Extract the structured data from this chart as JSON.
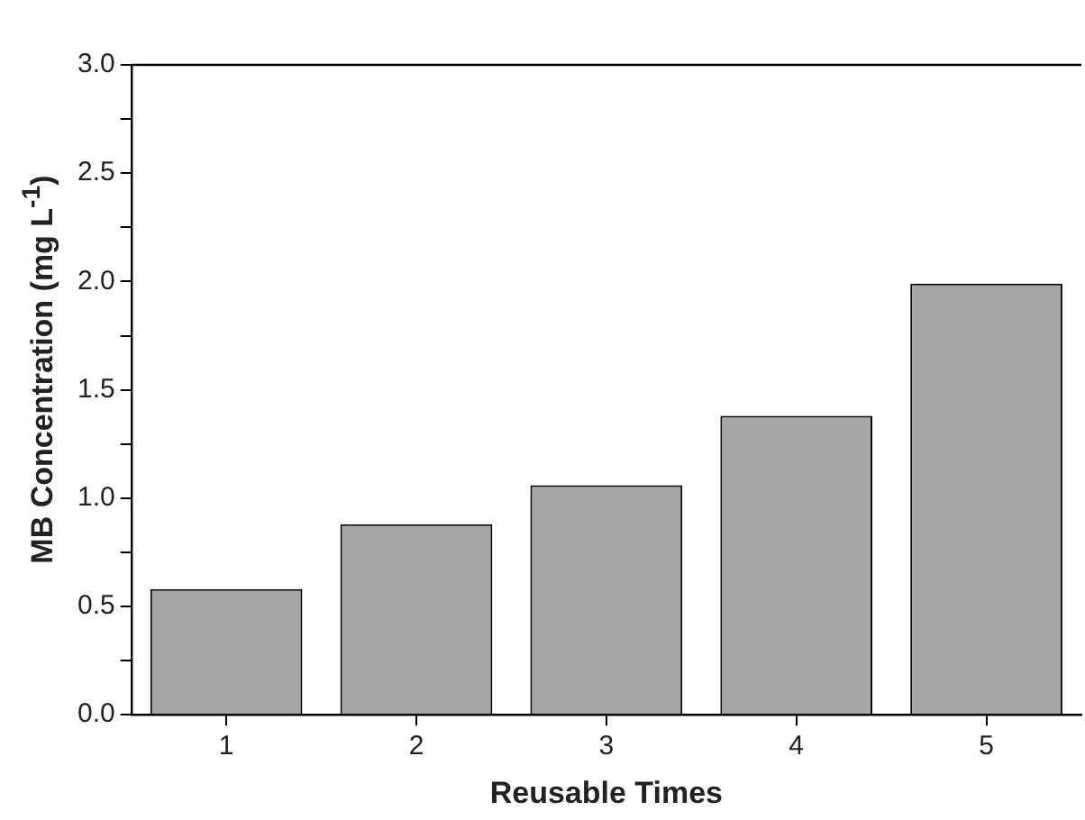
{
  "chart_data": {
    "type": "bar",
    "xlabel": "Reusable Times",
    "ylabel": "MB Concentration (mg L$^{-1}$)",
    "categories": [
      "1",
      "2",
      "3",
      "4",
      "5"
    ],
    "values": [
      0.58,
      0.88,
      1.06,
      1.38,
      1.99
    ],
    "color": "#a6a6a6",
    "ylim": [
      0,
      3
    ],
    "yticks": [
      {
        "value": 0,
        "label": "0.0"
      },
      {
        "value": 0.25,
        "label": null
      },
      {
        "value": 0.5,
        "label": "0.5"
      },
      {
        "value": 0.75,
        "label": null
      },
      {
        "value": 1,
        "label": "1.0"
      },
      {
        "value": 1.25,
        "label": null
      },
      {
        "value": 1.5,
        "label": "1.5"
      },
      {
        "value": 1.75,
        "label": null
      },
      {
        "value": 2,
        "label": "2.0"
      },
      {
        "value": 2.25,
        "label": null
      },
      {
        "value": 2.5,
        "label": "2.5"
      },
      {
        "value": 2.75,
        "label": null
      },
      {
        "value": 3,
        "label": "3.0"
      }
    ],
    "grid": false,
    "legend": false
  }
}
